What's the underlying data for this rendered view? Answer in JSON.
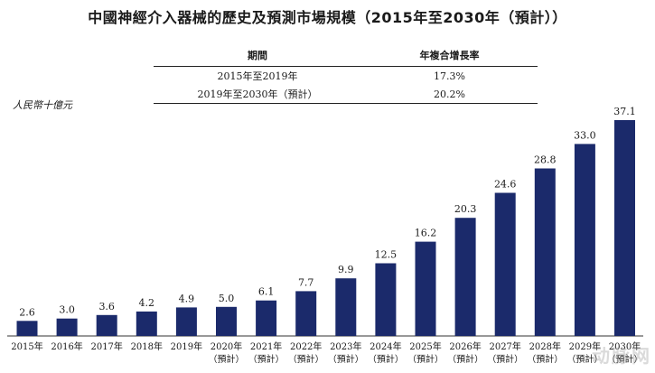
{
  "title": "中國神經介入器械的歷史及預測市場規模（2015年至2030年（預計））",
  "cagr_table": {
    "headers": [
      "期間",
      "年複合增長率"
    ],
    "rows": [
      {
        "period": "2015年至2019年",
        "rate": "17.3%"
      },
      {
        "period": "2019年至2030年（預計）",
        "rate": "20.2%"
      }
    ]
  },
  "watermark": "动脉网",
  "chart_data": {
    "type": "bar",
    "ylabel": "人民幣十億元",
    "categories": [
      "2015年",
      "2016年",
      "2017年",
      "2018年",
      "2019年",
      "2020年",
      "2021年",
      "2022年",
      "2023年",
      "2024年",
      "2025年",
      "2026年",
      "2027年",
      "2028年",
      "2029年",
      "2030年"
    ],
    "estimate_note": "（預計）",
    "estimated": [
      false,
      false,
      false,
      false,
      false,
      true,
      true,
      true,
      true,
      true,
      true,
      true,
      true,
      true,
      true,
      true
    ],
    "values": [
      2.6,
      3.0,
      3.6,
      4.2,
      4.9,
      5.0,
      6.1,
      7.7,
      9.9,
      12.5,
      16.2,
      20.3,
      24.6,
      28.8,
      33.0,
      37.1
    ],
    "value_labels": [
      "2.6",
      "3.0",
      "3.6",
      "4.2",
      "4.9",
      "5.0",
      "6.1",
      "7.7",
      "9.9",
      "12.5",
      "16.2",
      "20.3",
      "24.6",
      "28.8",
      "33.0",
      "37.1"
    ],
    "bar_color": "#1b2a6b",
    "grid": false,
    "legend": "none"
  }
}
